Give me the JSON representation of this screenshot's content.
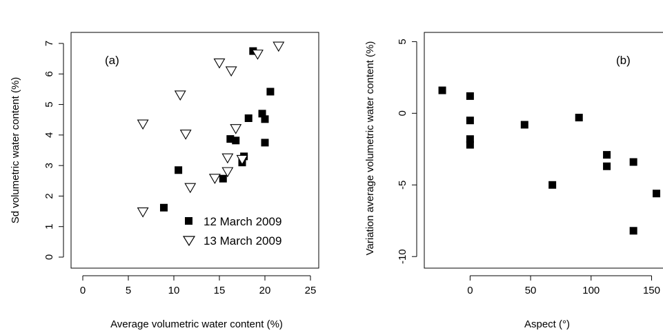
{
  "chart_data": [
    {
      "type": "scatter",
      "panel_label": "(a)",
      "xlabel": "Average volumetric water content (%)",
      "ylabel": "Sd volumetric water content (%)",
      "xlim": [
        0,
        25
      ],
      "ylim": [
        0,
        7
      ],
      "xticks": [
        "0",
        "5",
        "10",
        "15",
        "20",
        "25"
      ],
      "yticks": [
        "0",
        "1",
        "2",
        "3",
        "4",
        "5",
        "6",
        "7"
      ],
      "grid": false,
      "legend_position": "bottom-right",
      "series": [
        {
          "name": "12 March 2009",
          "marker": "filled-square",
          "points": [
            [
              8.9,
              1.62
            ],
            [
              10.5,
              2.85
            ],
            [
              15.4,
              2.57
            ],
            [
              16.2,
              3.87
            ],
            [
              16.8,
              3.82
            ],
            [
              17.5,
              3.1
            ],
            [
              17.7,
              3.3
            ],
            [
              18.2,
              4.55
            ],
            [
              18.7,
              6.75
            ],
            [
              19.7,
              4.7
            ],
            [
              20.0,
              4.52
            ],
            [
              20.0,
              3.75
            ],
            [
              20.6,
              5.42
            ]
          ]
        },
        {
          "name": "13 March 2009",
          "marker": "open-triangle-down",
          "points": [
            [
              6.6,
              1.5
            ],
            [
              6.6,
              4.38
            ],
            [
              10.7,
              5.33
            ],
            [
              11.3,
              4.05
            ],
            [
              11.8,
              2.3
            ],
            [
              14.5,
              2.6
            ],
            [
              15.0,
              6.38
            ],
            [
              15.9,
              2.82
            ],
            [
              15.9,
              3.27
            ],
            [
              16.3,
              6.12
            ],
            [
              16.8,
              4.23
            ],
            [
              17.5,
              3.22
            ],
            [
              19.2,
              6.67
            ],
            [
              21.5,
              6.93
            ]
          ]
        }
      ]
    },
    {
      "type": "scatter",
      "panel_label": "(b)",
      "xlabel": "Aspect (°)",
      "ylabel": "Variation average volumetric water content (%)",
      "xlim": [
        -35,
        160
      ],
      "ylim": [
        -11,
        5.5
      ],
      "xticks": [
        "0",
        "50",
        "100",
        "150"
      ],
      "yticks": [
        "-10",
        "-5",
        "0",
        "5"
      ],
      "grid": false,
      "series": [
        {
          "marker": "filled-square",
          "points": [
            [
              -23,
              1.6
            ],
            [
              0,
              1.2
            ],
            [
              0,
              -0.5
            ],
            [
              0,
              -1.8
            ],
            [
              0,
              -2.2
            ],
            [
              45,
              -0.8
            ],
            [
              68,
              -5.0
            ],
            [
              90,
              -0.3
            ],
            [
              113,
              -2.9
            ],
            [
              113,
              -3.7
            ],
            [
              135,
              -3.4
            ],
            [
              135,
              -8.2
            ],
            [
              154,
              -5.6
            ]
          ]
        }
      ]
    }
  ]
}
